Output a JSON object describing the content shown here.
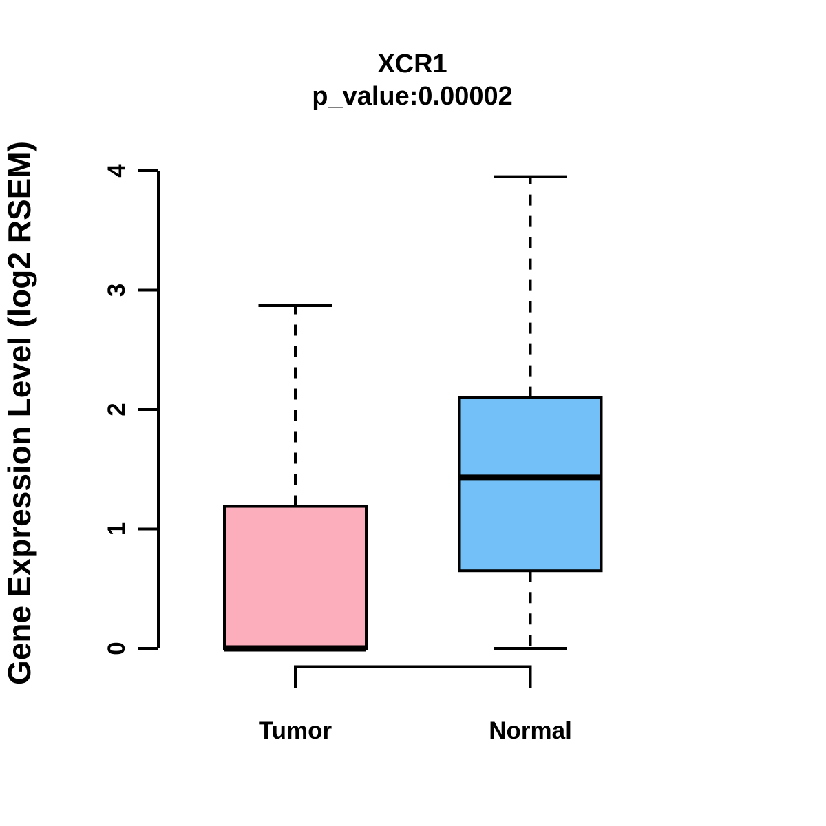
{
  "title": "XCR1",
  "subtitle": "p_value:0.00002",
  "ylabel": "Gene Expression Level (log2 RSEM)",
  "colors": {
    "tumor_fill": "#FDAEBD",
    "normal_fill": "#73BFF7",
    "line": "#000000",
    "background": "#FFFFFF"
  },
  "chart_data": {
    "type": "boxplot",
    "title": "XCR1",
    "subtitle": "p_value:0.00002",
    "p_value": 2e-05,
    "ylabel": "Gene Expression Level (log2 RSEM)",
    "xlabel": "",
    "ylim": [
      0,
      4
    ],
    "yticks": [
      0,
      1,
      2,
      3,
      4
    ],
    "grid": false,
    "legend": "none",
    "categories": [
      "Tumor",
      "Normal"
    ],
    "series": [
      {
        "name": "Tumor",
        "fill": "#FDAEBD",
        "lower_whisker": 0,
        "q1": 0,
        "median": 0,
        "q3": 1.19,
        "upper_whisker": 2.87,
        "outliers": []
      },
      {
        "name": "Normal",
        "fill": "#73BFF7",
        "lower_whisker": 0,
        "q1": 0.65,
        "median": 1.43,
        "q3": 2.1,
        "upper_whisker": 3.95,
        "outliers": []
      }
    ],
    "comparison_bracket": {
      "between": [
        "Tumor",
        "Normal"
      ],
      "shown": true
    }
  }
}
